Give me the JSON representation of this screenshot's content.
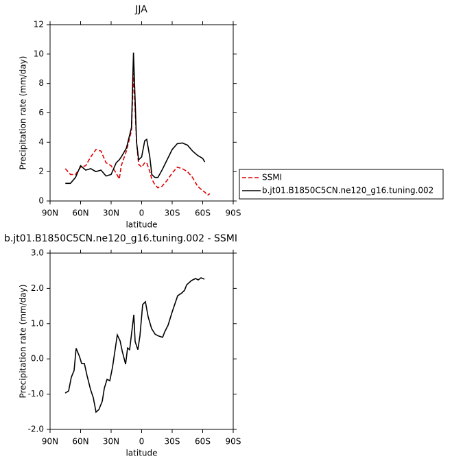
{
  "chart_data": [
    {
      "type": "line",
      "title": "JJA",
      "xlabel": "latitude",
      "ylabel": "Precipitation rate (mm/day)",
      "x": [
        75,
        70,
        65,
        60,
        55,
        50,
        45,
        40,
        35,
        30,
        25,
        22,
        20,
        15,
        10,
        8,
        5,
        3,
        0,
        -3,
        -5,
        -8,
        -10,
        -13,
        -16,
        -20,
        -25,
        -30,
        -35,
        -40,
        -45,
        -50,
        -55,
        -60,
        -62,
        -65,
        -67
      ],
      "series": [
        {
          "name": "SSMI",
          "color": "#e00000",
          "linestyle": "dashed",
          "values": [
            2.2,
            1.8,
            1.8,
            2.3,
            2.4,
            3.0,
            3.5,
            3.4,
            2.6,
            2.4,
            1.9,
            1.5,
            2.4,
            3.4,
            4.8,
            8.7,
            4.0,
            2.5,
            2.3,
            2.6,
            2.6,
            2.0,
            1.5,
            1.1,
            0.9,
            1.0,
            1.4,
            1.9,
            2.3,
            2.2,
            2.0,
            1.6,
            1.0,
            0.7,
            0.6,
            0.4,
            0.5
          ]
        },
        {
          "name": "b.jt01.B1850C5CN.ne120_g16.tuning.002",
          "color": "#000000",
          "linestyle": "solid",
          "values": [
            1.2,
            1.2,
            1.6,
            2.4,
            2.1,
            2.2,
            2.0,
            2.1,
            1.7,
            1.8,
            2.6,
            2.8,
            3.0,
            3.6,
            5.0,
            10.1,
            4.0,
            2.8,
            3.0,
            4.1,
            4.2,
            3.0,
            1.8,
            1.6,
            1.6,
            2.1,
            2.8,
            3.5,
            3.9,
            3.95,
            3.8,
            3.4,
            3.1,
            2.9,
            2.65,
            null,
            null
          ]
        }
      ],
      "xlim": [
        90,
        -90
      ],
      "xticks": [
        {
          "value": 90,
          "label": "90N"
        },
        {
          "value": 60,
          "label": "60N"
        },
        {
          "value": 30,
          "label": "30N"
        },
        0,
        {
          "value": -30,
          "label": "30S"
        },
        {
          "value": -60,
          "label": "60S"
        },
        {
          "value": -90,
          "label": "90S"
        }
      ],
      "ylim": [
        0,
        12
      ],
      "yticks": [
        0,
        2,
        4,
        6,
        8,
        10,
        12
      ],
      "legend": "outside-right"
    },
    {
      "type": "line",
      "title": "b.jt01.B1850C5CN.ne120_g16.tuning.002 - SSMI",
      "xlabel": "latitude",
      "ylabel": "Precipitation rate (mm/day)",
      "x": [
        75.2,
        71.8,
        69.1,
        66.4,
        64.4,
        61,
        59,
        56.3,
        53.6,
        50.2,
        47.5,
        44.8,
        42.1,
        38.7,
        36.7,
        34,
        31.3,
        28.6,
        23.9,
        21.2,
        19.1,
        15.8,
        13.8,
        11.8,
        7.7,
        6.4,
        3.7,
        1.7,
        -1,
        -3.7,
        -6.4,
        -9.8,
        -13.2,
        -16.5,
        -20.6,
        -22.6,
        -26,
        -30,
        -35.4,
        -39.5,
        -42.2,
        -44.2,
        -48.9,
        -53,
        -55.6,
        -58.3,
        -61.7
      ],
      "series": [
        {
          "name": "b.jt01.B1850C5CN.ne120_g16.tuning.002 - SSMI",
          "color": "#000000",
          "linestyle": "solid",
          "values": [
            -0.97,
            -0.91,
            -0.52,
            -0.33,
            0.3,
            0.06,
            -0.13,
            -0.13,
            -0.48,
            -0.87,
            -1.1,
            -1.51,
            -1.44,
            -1.2,
            -0.83,
            -0.58,
            -0.62,
            -0.23,
            0.68,
            0.51,
            0.22,
            -0.15,
            0.31,
            0.26,
            1.25,
            0.49,
            0.26,
            0.65,
            1.54,
            1.62,
            1.19,
            0.86,
            0.7,
            0.65,
            0.61,
            0.76,
            0.96,
            1.33,
            1.79,
            1.87,
            1.95,
            2.1,
            2.22,
            2.28,
            2.24,
            2.3,
            2.26
          ]
        }
      ],
      "xlim": [
        90,
        -90
      ],
      "xticks": [
        {
          "value": 90,
          "label": "90N"
        },
        {
          "value": 60,
          "label": "60N"
        },
        {
          "value": 30,
          "label": "30N"
        },
        0,
        {
          "value": -30,
          "label": "30S"
        },
        {
          "value": -60,
          "label": "60S"
        },
        {
          "value": -90,
          "label": "90S"
        }
      ],
      "ylim": [
        -2,
        3
      ],
      "yticks": [
        {
          "value": -2,
          "label": "-2.0"
        },
        {
          "value": -1,
          "label": "-1.0"
        },
        {
          "value": 0,
          "label": "0.0"
        },
        {
          "value": 1,
          "label": "1.0"
        },
        {
          "value": 2,
          "label": "2.0"
        },
        {
          "value": 3,
          "label": "3.0"
        }
      ]
    }
  ]
}
